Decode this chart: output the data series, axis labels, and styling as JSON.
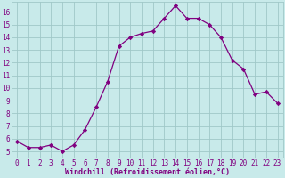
{
  "x": [
    0,
    1,
    2,
    3,
    4,
    5,
    6,
    7,
    8,
    9,
    10,
    11,
    12,
    13,
    14,
    15,
    16,
    17,
    18,
    19,
    20,
    21,
    22,
    23
  ],
  "y": [
    5.8,
    5.3,
    5.3,
    5.5,
    5.0,
    5.5,
    6.7,
    8.5,
    10.5,
    13.3,
    14.0,
    14.3,
    14.5,
    15.5,
    16.5,
    15.5,
    15.5,
    15.0,
    14.0,
    12.2,
    11.5,
    9.5,
    9.7,
    8.8
  ],
  "line_color": "#800080",
  "marker": "D",
  "marker_size": 2.2,
  "bg_color": "#c8eaea",
  "grid_color": "#a0c8c8",
  "xlabel": "Windchill (Refroidissement éolien,°C)",
  "xlabel_color": "#800080",
  "tick_color": "#800080",
  "xlim": [
    -0.5,
    23.5
  ],
  "ylim": [
    4.5,
    16.8
  ],
  "yticks": [
    5,
    6,
    7,
    8,
    9,
    10,
    11,
    12,
    13,
    14,
    15,
    16
  ],
  "xticks": [
    0,
    1,
    2,
    3,
    4,
    5,
    6,
    7,
    8,
    9,
    10,
    11,
    12,
    13,
    14,
    15,
    16,
    17,
    18,
    19,
    20,
    21,
    22,
    23
  ],
  "tick_fontsize": 5.5,
  "xlabel_fontsize": 6.0,
  "linewidth": 0.9
}
